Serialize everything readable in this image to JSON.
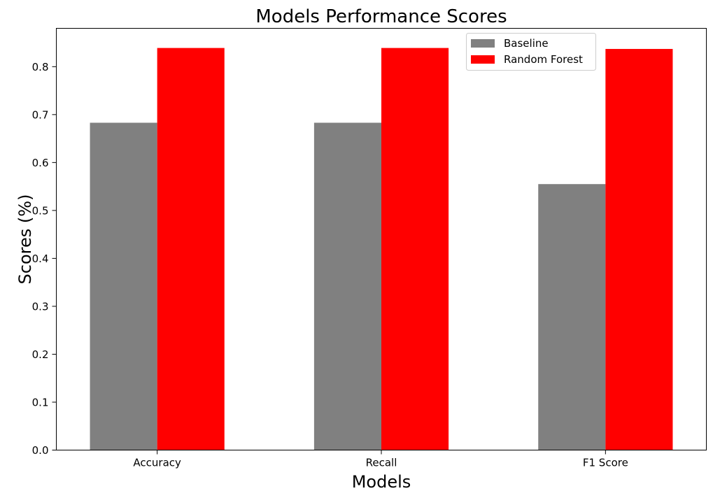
{
  "chart_data": {
    "type": "bar",
    "title": "Models Performance Scores",
    "xlabel": "Models",
    "ylabel": "Scores (%)",
    "categories": [
      "Accuracy",
      "Recall",
      "F1 Score"
    ],
    "series": [
      {
        "name": "Baseline",
        "values": [
          0.683,
          0.683,
          0.555
        ],
        "color": "#808080"
      },
      {
        "name": "Random Forest",
        "values": [
          0.839,
          0.839,
          0.837
        ],
        "color": "#ff0000"
      }
    ],
    "ylim": [
      0,
      0.88
    ],
    "yticks": [
      "0.0",
      "0.1",
      "0.2",
      "0.3",
      "0.4",
      "0.5",
      "0.6",
      "0.7",
      "0.8"
    ],
    "grid": false,
    "legend_position": "top-right"
  }
}
